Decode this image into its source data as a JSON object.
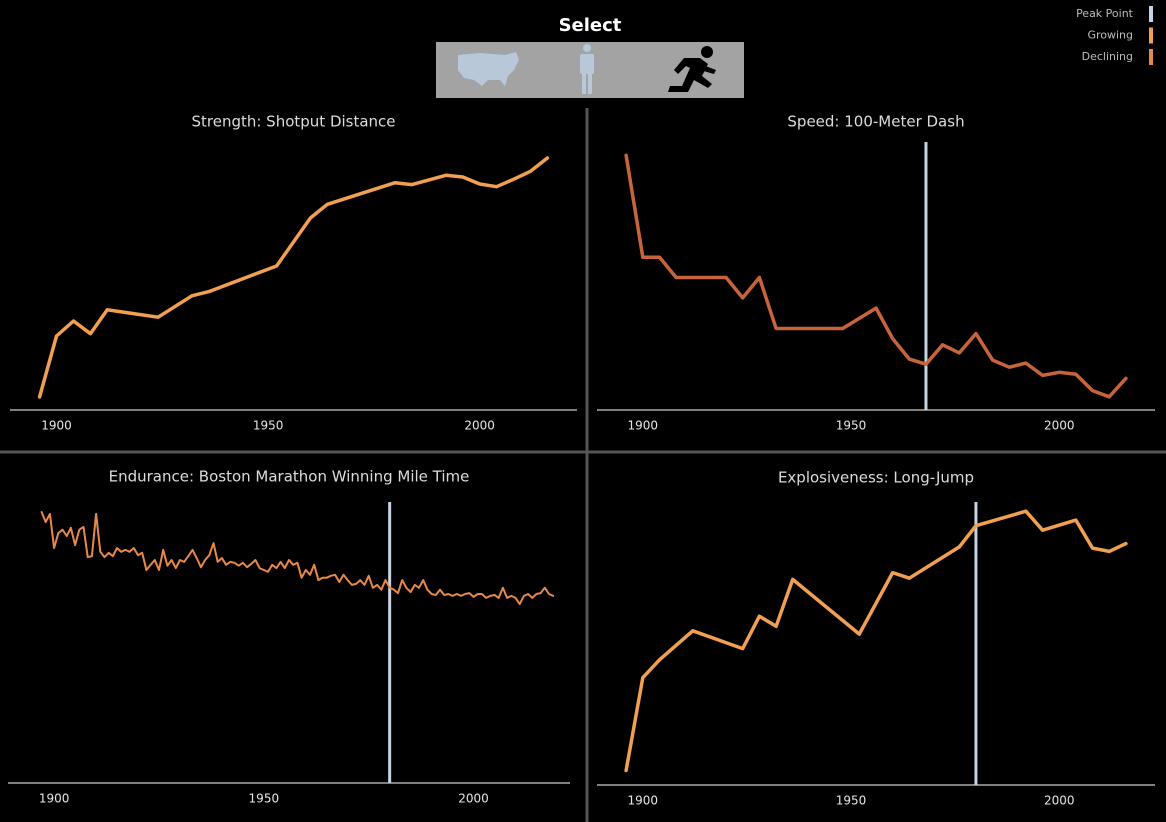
{
  "header": {
    "title": "Select",
    "legend": [
      {
        "label": "Peak Point",
        "color": "#c5d3e2"
      },
      {
        "label": "Growing",
        "color": "#f0a050"
      },
      {
        "label": "Declining",
        "color": "#e08a50"
      }
    ]
  },
  "chart_data": [
    {
      "type": "line",
      "title": "Strength: Shotput Distance",
      "color": "#f0a050",
      "x": [
        1896,
        1900,
        1904,
        1908,
        1912,
        1924,
        1932,
        1936,
        1952,
        1960,
        1964,
        1980,
        1984,
        1992,
        1996,
        2000,
        2004,
        2008,
        2012,
        2016
      ],
      "values": [
        11.22,
        14.1,
        14.81,
        14.21,
        15.34,
        14.99,
        16.0,
        16.2,
        17.41,
        19.68,
        20.33,
        21.35,
        21.26,
        21.7,
        21.62,
        21.29,
        21.16,
        21.51,
        21.89,
        22.52
      ],
      "xlim": [
        1889,
        2023
      ],
      "xticks": [
        1900,
        1950,
        2000
      ],
      "ylim": [
        10.6,
        23.37
      ]
    },
    {
      "type": "line",
      "title": "Speed: 100-Meter Dash",
      "color": "#c8643a",
      "x": [
        1896,
        1900,
        1904,
        1908,
        1912,
        1920,
        1924,
        1928,
        1932,
        1936,
        1948,
        1956,
        1960,
        1964,
        1968,
        1972,
        1976,
        1980,
        1984,
        1988,
        1992,
        1996,
        2000,
        2004,
        2008,
        2012,
        2016
      ],
      "values": [
        12.0,
        11.0,
        11.0,
        10.8,
        10.8,
        10.8,
        10.6,
        10.8,
        10.3,
        10.3,
        10.3,
        10.5,
        10.2,
        10.0,
        9.95,
        10.14,
        10.06,
        10.25,
        9.99,
        9.92,
        9.96,
        9.84,
        9.87,
        9.85,
        9.69,
        9.63,
        9.81
      ],
      "xlim": [
        1889,
        2023
      ],
      "xticks": [
        1900,
        1950,
        2000
      ],
      "ylim": [
        9.5,
        12.15
      ],
      "peak_point": 1968
    },
    {
      "type": "line",
      "title": "Endurance: Boston Marathon Winning Mile Time",
      "color": "#e8894a",
      "x": [
        1897,
        1898,
        1899,
        1900,
        1901,
        1902,
        1903,
        1904,
        1905,
        1906,
        1907,
        1908,
        1909,
        1910,
        1911,
        1912,
        1913,
        1914,
        1915,
        1916,
        1917,
        1918,
        1919,
        1920,
        1921,
        1922,
        1923,
        1924,
        1925,
        1926,
        1927,
        1928,
        1929,
        1930,
        1931,
        1932,
        1933,
        1934,
        1935,
        1936,
        1937,
        1938,
        1939,
        1940,
        1941,
        1942,
        1943,
        1944,
        1945,
        1946,
        1947,
        1948,
        1949,
        1950,
        1951,
        1952,
        1953,
        1954,
        1955,
        1956,
        1957,
        1958,
        1959,
        1960,
        1961,
        1962,
        1963,
        1964,
        1965,
        1966,
        1967,
        1968,
        1969,
        1970,
        1971,
        1972,
        1973,
        1974,
        1975,
        1976,
        1977,
        1978,
        1979,
        1980,
        1981,
        1982,
        1983,
        1984,
        1985,
        1986,
        1987,
        1988,
        1989,
        1990,
        1991,
        1992,
        1993,
        1994,
        1995,
        1996,
        1997,
        1998,
        1999,
        2000,
        2001,
        2002,
        2003,
        2004,
        2005,
        2006,
        2007,
        2008,
        2009,
        2010,
        2011,
        2012,
        2013,
        2014,
        2015,
        2016,
        2017,
        2018,
        2019
      ],
      "values": [
        6.68,
        6.47,
        6.64,
        5.93,
        6.24,
        6.31,
        6.18,
        6.35,
        5.99,
        6.31,
        6.37,
        5.74,
        5.76,
        6.64,
        5.85,
        5.74,
        5.83,
        5.76,
        5.93,
        5.85,
        5.89,
        5.85,
        5.93,
        5.78,
        5.83,
        5.47,
        5.58,
        5.68,
        5.47,
        5.89,
        5.56,
        5.68,
        5.51,
        5.68,
        5.64,
        5.76,
        5.89,
        5.72,
        5.53,
        5.68,
        5.78,
        6.03,
        5.64,
        5.72,
        5.58,
        5.64,
        5.62,
        5.56,
        5.62,
        5.53,
        5.6,
        5.68,
        5.51,
        5.47,
        5.43,
        5.58,
        5.51,
        5.64,
        5.51,
        5.68,
        5.58,
        5.62,
        5.31,
        5.47,
        5.37,
        5.58,
        5.26,
        5.31,
        5.31,
        5.35,
        5.37,
        5.22,
        5.37,
        5.26,
        5.16,
        5.18,
        5.26,
        5.16,
        5.35,
        5.1,
        5.16,
        5.06,
        5.26,
        5.1,
        5.06,
        4.99,
        5.26,
        5.1,
        5.01,
        5.16,
        5.1,
        5.26,
        5.06,
        4.97,
        4.95,
        5.06,
        4.95,
        4.97,
        4.93,
        4.97,
        4.93,
        4.97,
        4.99,
        4.91,
        4.97,
        4.97,
        4.89,
        4.93,
        4.95,
        4.89,
        5.1,
        4.89,
        4.93,
        4.89,
        4.76,
        4.93,
        4.97,
        4.89,
        4.97,
        4.99,
        5.1,
        4.97,
        4.93
      ],
      "xlim": [
        1889,
        2023
      ],
      "xticks": [
        1900,
        1950,
        2000
      ],
      "ylim": [
        1.03,
        6.93
      ],
      "peak_point": 1980
    },
    {
      "type": "line",
      "title": "Explosiveness: Long-Jump",
      "color": "#f0a050",
      "x": [
        1896,
        1900,
        1904,
        1912,
        1924,
        1928,
        1932,
        1936,
        1952,
        1960,
        1964,
        1976,
        1980,
        1992,
        1996,
        2004,
        2008,
        2012,
        2016
      ],
      "values": [
        6.35,
        7.18,
        7.34,
        7.6,
        7.44,
        7.73,
        7.64,
        8.06,
        7.57,
        8.12,
        8.07,
        8.35,
        8.54,
        8.67,
        8.5,
        8.59,
        8.34,
        8.31,
        8.38
      ],
      "xlim": [
        1889,
        2023
      ],
      "xticks": [
        1900,
        1950,
        2000
      ],
      "ylim": [
        6.22,
        8.77
      ],
      "peak_point": 1980
    }
  ]
}
